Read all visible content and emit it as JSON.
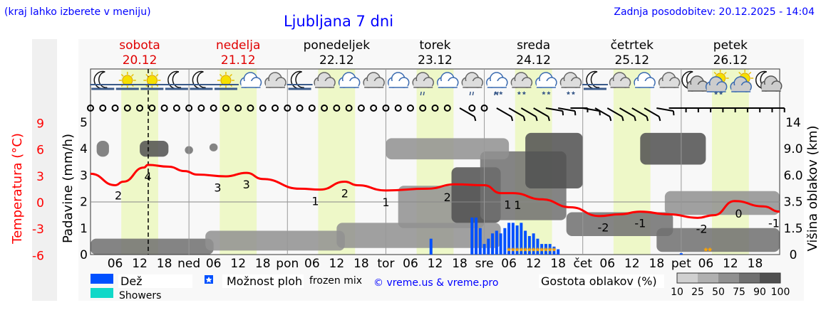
{
  "header": {
    "hint": "(kraj lahko izberete v meniju)",
    "title": "Ljubljana 7 dni",
    "updated": "Zadnja posodobitev: 20.12.2025 - 14:04"
  },
  "colors": {
    "title": "#0000ff",
    "temperature": "#ff0000",
    "rain": "#0050ff",
    "showers": "#10d8c8",
    "snow_star": "#ffa500",
    "daylight": "#eef8c8",
    "panel": "#f8f8f8"
  },
  "chart_data": {
    "type": "meteogram",
    "title": "Ljubljana 7 dni",
    "days": [
      {
        "name": "sobota",
        "date": "20.12",
        "weekend": true
      },
      {
        "name": "nedelja",
        "date": "21.12",
        "weekend": true
      },
      {
        "name": "ponedeljek",
        "date": "22.12",
        "weekend": false
      },
      {
        "name": "torek",
        "date": "23.12",
        "weekend": false
      },
      {
        "name": "sreda",
        "date": "24.12",
        "weekend": false
      },
      {
        "name": "četrtek",
        "date": "25.12",
        "weekend": false
      },
      {
        "name": "petek",
        "date": "26.12",
        "weekend": false
      }
    ],
    "x_tick_labels": [
      "06",
      "12",
      "18",
      "ned",
      "06",
      "12",
      "18",
      "pon",
      "06",
      "12",
      "18",
      "tor",
      "06",
      "12",
      "18",
      "sre",
      "06",
      "12",
      "18",
      "čet",
      "06",
      "12",
      "18",
      "pet",
      "06",
      "12",
      "18"
    ],
    "now_hour": 14.07,
    "daylight_hours": [
      7.5,
      16.5
    ],
    "temperature": {
      "axis_label": "Temperatura (°C)",
      "ylim": [
        -6,
        9
      ],
      "ticks": [
        "9",
        "6",
        "3",
        "0",
        "-3",
        "-6"
      ],
      "hours": [
        0,
        6,
        8,
        13,
        14,
        19,
        23,
        26,
        33,
        38,
        42,
        51,
        56,
        62,
        65,
        72,
        82,
        89,
        96,
        100,
        103,
        110,
        117,
        124,
        129,
        134,
        141,
        148,
        152,
        157,
        164,
        168
      ],
      "values": [
        3.2,
        1.9,
        2.3,
        3.9,
        4.2,
        4.0,
        3.5,
        3.1,
        2.9,
        3.3,
        2.6,
        1.5,
        1.4,
        2.3,
        1.9,
        1.3,
        1.5,
        2.0,
        1.9,
        1.0,
        1.0,
        0.3,
        -0.6,
        -1.6,
        -1.4,
        -1.1,
        -1.4,
        -1.8,
        -1.5,
        0.1,
        -0.5,
        -1.1
      ],
      "point_labels": [
        {
          "hour": 6.8,
          "text": "2"
        },
        {
          "hour": 14,
          "text": "4"
        },
        {
          "hour": 31,
          "text": "3"
        },
        {
          "hour": 38,
          "text": "3"
        },
        {
          "hour": 54.8,
          "text": "1"
        },
        {
          "hour": 62,
          "text": "2"
        },
        {
          "hour": 72,
          "text": "1"
        },
        {
          "hour": 87,
          "text": "2"
        },
        {
          "hour": 102.5,
          "text": "1"
        },
        {
          "hour": 103.3,
          "text": "1"
        },
        {
          "hour": 125,
          "text": "-2"
        },
        {
          "hour": 134,
          "text": "-1"
        },
        {
          "hour": 149,
          "text": "-2"
        },
        {
          "hour": 158,
          "text": "0"
        },
        {
          "hour": 168,
          "text": "-1"
        }
      ]
    },
    "precipitation": {
      "axis_label": "Padavine (mm/h)",
      "ylim": [
        0,
        5
      ],
      "ticks": [
        "0",
        "1",
        "2",
        "3",
        "4",
        "5"
      ],
      "rain_hours": [
        83,
        93,
        94,
        95,
        96,
        97,
        98,
        99,
        100,
        101,
        102,
        103,
        104,
        105,
        106,
        107,
        108,
        109,
        110,
        111,
        112,
        113,
        114,
        144
      ],
      "rain_values": [
        0.6,
        1.4,
        1.4,
        1.0,
        0.4,
        0.6,
        0.8,
        0.9,
        0.8,
        1.0,
        1.2,
        1.2,
        1.1,
        1.2,
        0.9,
        0.7,
        0.8,
        0.6,
        0.4,
        0.4,
        0.4,
        0.3,
        0.2,
        0.05
      ],
      "snow_possible_hours": [
        102,
        103,
        104,
        105,
        106,
        107,
        108,
        109,
        110,
        111,
        112,
        113,
        150,
        151
      ]
    },
    "cloud_height": {
      "axis_label": "Višina oblakov (km)",
      "ticks": [
        "0",
        "1.5",
        "3.5",
        "6.0",
        "9.0",
        "14"
      ]
    },
    "cloud_density": {
      "legend_label": "Gostota oblakov (%)",
      "levels": [
        "10",
        "25",
        "50",
        "75",
        "90",
        "100"
      ],
      "level_colors": [
        "#d0d0d0",
        "#b0b0b0",
        "#909090",
        "#707070",
        "#505050"
      ],
      "blobs": [
        {
          "h0": 0,
          "h1": 30,
          "lo": 0,
          "hi": 0.6,
          "d": 3
        },
        {
          "h0": 28,
          "h1": 62,
          "lo": 0.15,
          "hi": 0.9,
          "d": 2
        },
        {
          "h0": 60,
          "h1": 100,
          "lo": 0.25,
          "hi": 1.2,
          "d": 2
        },
        {
          "h0": 75,
          "h1": 96,
          "lo": 1.0,
          "hi": 2.6,
          "d": 2
        },
        {
          "h0": 88,
          "h1": 100,
          "lo": 1.2,
          "hi": 3.3,
          "d": 4
        },
        {
          "h0": 95,
          "h1": 116,
          "lo": 1.3,
          "hi": 3.9,
          "d": 3
        },
        {
          "h0": 106,
          "h1": 120,
          "lo": 2.5,
          "hi": 4.6,
          "d": 4
        },
        {
          "h0": 72,
          "h1": 102,
          "lo": 3.6,
          "hi": 4.4,
          "d": 2
        },
        {
          "h0": 116,
          "h1": 142,
          "lo": 0.7,
          "hi": 1.6,
          "d": 3
        },
        {
          "h0": 134,
          "h1": 150,
          "lo": 3.4,
          "hi": 4.6,
          "d": 4
        },
        {
          "h0": 140,
          "h1": 168,
          "lo": 1.5,
          "hi": 2.4,
          "d": 2
        },
        {
          "h0": 138,
          "h1": 168,
          "lo": 0.1,
          "hi": 1.0,
          "d": 3
        },
        {
          "h0": 1.5,
          "h1": 4.5,
          "lo": 3.7,
          "hi": 4.3,
          "d": 3
        },
        {
          "h0": 12,
          "h1": 19,
          "lo": 3.7,
          "hi": 4.3,
          "d": 4
        },
        {
          "h0": 23,
          "h1": 25,
          "lo": 3.8,
          "hi": 4.1,
          "d": 3
        },
        {
          "h0": 29,
          "h1": 31,
          "lo": 3.9,
          "hi": 4.2,
          "d": 3
        }
      ]
    },
    "symbols": [
      "moon-fog",
      "sun-fog",
      "sun-fog",
      "moon-fog",
      "moon-fog",
      "sun-fog",
      "cloud",
      "cloud",
      "moon-fog",
      "cloud",
      "cloud",
      "cloud",
      "cloud",
      "cloud-rain",
      "cloud",
      "cloud-rain",
      "cloud-sleet",
      "cloud-snow",
      "cloud-snow",
      "cloud-snow",
      "moon-fog",
      "cloud",
      "cloud",
      "cloud",
      "moon-cloud",
      "sun-cloud-snow",
      "sun-cloud",
      "moon-cloud"
    ],
    "wind": [
      "calm",
      "calm",
      "calm",
      "calm",
      "calm",
      "calm",
      "calm",
      "calm",
      "calm",
      "calm",
      "calm",
      "calm",
      "calm",
      "calm",
      "calm",
      "calm",
      "calm",
      "calm",
      "calm",
      "calm",
      "calm",
      "calm",
      "calm",
      "calm",
      "calm",
      "calm",
      "calm",
      "calm",
      "calm",
      "calm",
      300,
      "calm",
      "calm",
      300,
      300,
      300,
      300,
      280,
      280,
      270,
      280,
      300,
      300,
      300,
      300,
      300,
      280,
      270,
      270,
      270,
      270,
      270,
      270,
      270,
      270,
      270
    ]
  },
  "legend": {
    "rain": "Dež",
    "showers": "Showers",
    "showers_possible": "Možnost ploh",
    "frozen_mix": "frozen mix",
    "copyright": "© vreme.us & vreme.pro"
  }
}
